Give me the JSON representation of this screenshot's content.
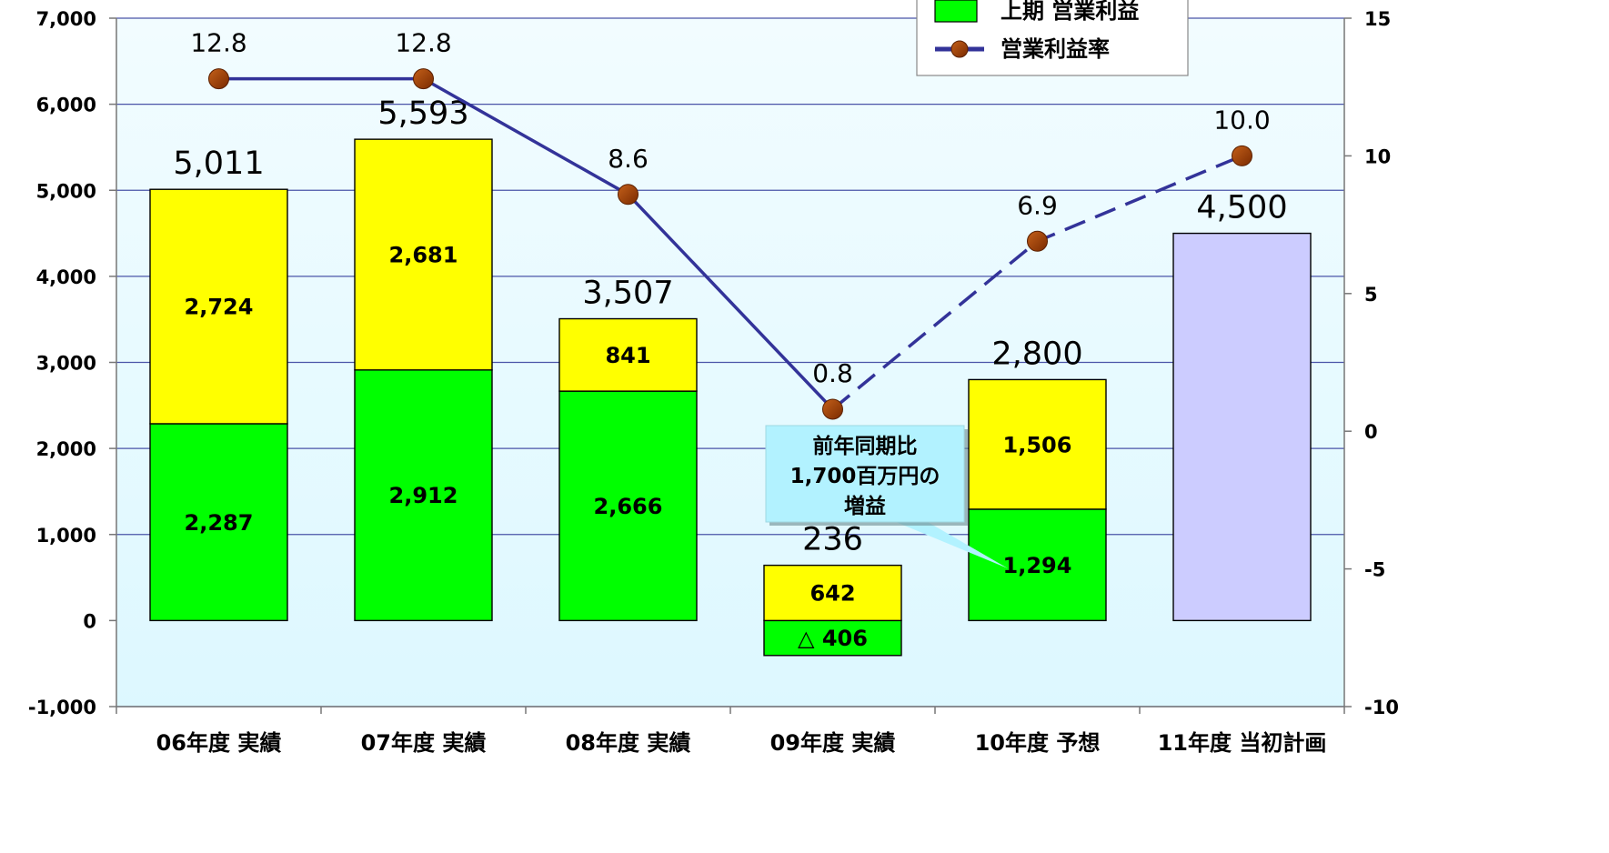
{
  "chart_data": {
    "type": "bar",
    "stacked": true,
    "categories": [
      "06年度 実績",
      "07年度 実績",
      "08年度 実績",
      "09年度 実績",
      "10年度 予想",
      "11年度 当初計画"
    ],
    "series": [
      {
        "name": "上期 営業利益",
        "color": "#00FF00",
        "values": [
          2287,
          2912,
          2666,
          -406,
          1294,
          null
        ],
        "labels": [
          "2,287",
          "2,912",
          "2,666",
          "△ 406",
          "1,294",
          ""
        ]
      },
      {
        "name": "",
        "color": "#FFFF00",
        "values": [
          2724,
          2681,
          841,
          642,
          1506,
          null
        ],
        "labels": [
          "2,724",
          "2,681",
          "841",
          "642",
          "1,506",
          ""
        ]
      },
      {
        "name": "",
        "color": "#CCCCFF",
        "values": [
          null,
          null,
          null,
          null,
          null,
          4500
        ],
        "labels": [
          "",
          "",
          "",
          "",
          "",
          ""
        ]
      }
    ],
    "totals": [
      5011,
      5593,
      3507,
      236,
      2800,
      4500
    ],
    "total_labels": [
      "5,011",
      "5,593",
      "3,507",
      "236",
      "2,800",
      "4,500"
    ],
    "line_series": {
      "name": "営業利益率",
      "axis": "right",
      "values": [
        12.8,
        12.8,
        8.6,
        0.8,
        6.9,
        10.0
      ],
      "labels": [
        "12.8",
        "12.8",
        "8.6",
        "0.8",
        "6.9",
        "10.0"
      ],
      "line_color": "#333399",
      "marker_color": "#993300",
      "dashed_from_index": 3
    },
    "y_left": {
      "min": -1000,
      "max": 7000,
      "step": 1000,
      "tick_labels": [
        "-1,000",
        "0",
        "1,000",
        "2,000",
        "3,000",
        "4,000",
        "5,000",
        "6,000",
        "7,000"
      ]
    },
    "y_right": {
      "min": -10,
      "max": 15,
      "step": 5,
      "tick_labels": [
        "-10",
        "-5",
        "0",
        "5",
        "10",
        "15"
      ]
    },
    "grid": true,
    "legend_position": "top-right",
    "plot_background": "#DDF8FF",
    "callout": {
      "lines": [
        "前年同期比",
        "1,700百万円の",
        "増益"
      ],
      "background": "#B2F2FF"
    }
  }
}
